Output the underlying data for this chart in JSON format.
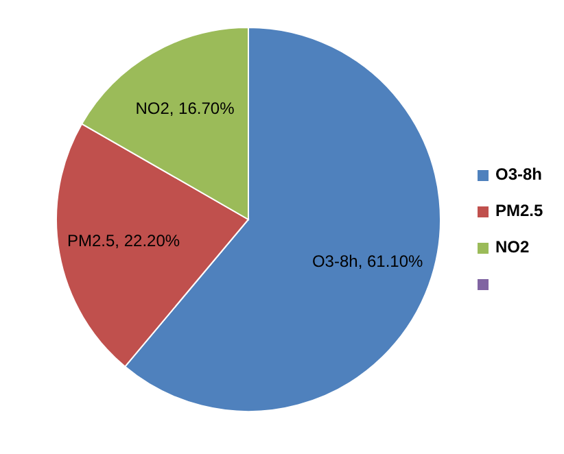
{
  "chart_data": {
    "type": "pie",
    "categories": [
      "O3-8h",
      "PM2.5",
      "NO2",
      null
    ],
    "values": [
      61.1,
      22.2,
      16.7,
      0
    ],
    "colors": [
      "#4f81bd",
      "#c0504d",
      "#9bbb59",
      "#8064a2"
    ],
    "value_labels": [
      "O3-8h, 61.10%",
      "PM2.5, 22.20%",
      "NO2, 16.70%",
      null
    ],
    "legend": "right"
  }
}
